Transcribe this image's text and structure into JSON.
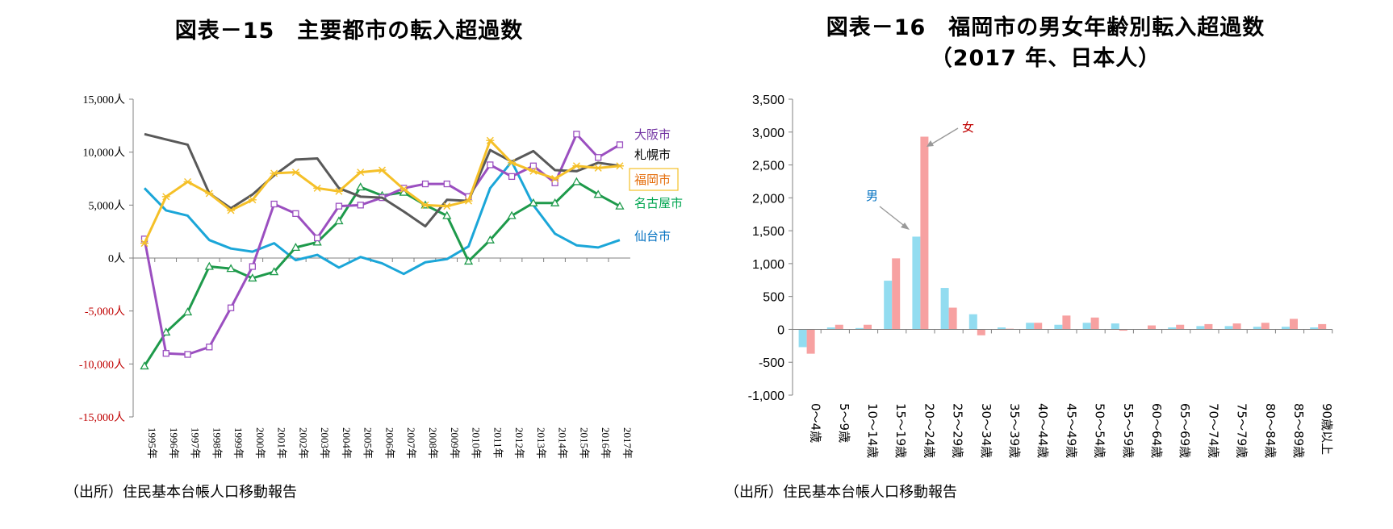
{
  "left_chart": {
    "title": "図表－15　主要都市の転入超過数",
    "source": "（出所）住民基本台帳人口移動報告",
    "chart_data": {
      "type": "line",
      "categories": [
        "1995年",
        "1996年",
        "1997年",
        "1998年",
        "1999年",
        "2000年",
        "2001年",
        "2002年",
        "2003年",
        "2004年",
        "2005年",
        "2006年",
        "2007年",
        "2008年",
        "2009年",
        "2010年",
        "2011年",
        "2012年",
        "2013年",
        "2014年",
        "2015年",
        "2016年",
        "2017年"
      ],
      "ylim": [
        -15000,
        15000
      ],
      "yticks": [
        15000,
        10000,
        5000,
        0,
        -5000,
        -10000,
        -15000
      ],
      "ytick_labels": [
        "15,000人",
        "10,000人",
        "5,000人",
        "0人",
        "-5,000人",
        "-10,000人",
        "-15,000人"
      ],
      "negative_tick_color": "#c00000",
      "series": [
        {
          "name": "大阪市",
          "color": "#9b4fc0",
          "marker": "square",
          "label_color": "#7030a0",
          "values": [
            1800,
            -9000,
            -9100,
            -8400,
            -4700,
            -800,
            5100,
            4200,
            1900,
            4900,
            5000,
            5700,
            6600,
            7000,
            7000,
            5800,
            8800,
            7700,
            8700,
            7100,
            11700,
            9500,
            10700
          ]
        },
        {
          "name": "札幌市",
          "color": "#595959",
          "marker": "none",
          "label_color": "#000000",
          "values": [
            11700,
            11200,
            10700,
            6100,
            4700,
            6000,
            7800,
            9300,
            9400,
            6600,
            5800,
            5700,
            4400,
            3000,
            5500,
            5400,
            10200,
            9100,
            10100,
            8300,
            8200,
            9000,
            8700
          ]
        },
        {
          "name": "福岡市",
          "color": "#f5c028",
          "marker": "star",
          "label_color": "#e46c0a",
          "boxed": true,
          "values": [
            1400,
            5800,
            7200,
            6100,
            4500,
            5500,
            8000,
            8100,
            6600,
            6300,
            8100,
            8300,
            6500,
            5000,
            4900,
            5400,
            11100,
            9000,
            8200,
            7500,
            8700,
            8500,
            8700
          ]
        },
        {
          "name": "名古屋市",
          "color": "#1e9a4b",
          "marker": "triangle",
          "label_color": "#00a550",
          "values": [
            -10200,
            -7000,
            -5100,
            -800,
            -1000,
            -1900,
            -1300,
            1000,
            1500,
            3500,
            6700,
            5900,
            6200,
            5000,
            4000,
            -300,
            1700,
            4000,
            5200,
            5200,
            7200,
            6000,
            4900
          ]
        },
        {
          "name": "仙台市",
          "color": "#1ba6d8",
          "marker": "none",
          "label_color": "#0070c0",
          "values": [
            6600,
            4500,
            4000,
            1700,
            900,
            600,
            1400,
            -200,
            300,
            -900,
            100,
            -500,
            -1500,
            -400,
            -100,
            1100,
            6600,
            9100,
            5000,
            2300,
            1200,
            1000,
            1700
          ]
        }
      ]
    }
  },
  "right_chart": {
    "title_line1": "図表－16　福岡市の男女年齢別転入超過数",
    "title_line2": "（2017 年、日本人）",
    "source": "（出所）住民基本台帳人口移動報告",
    "chart_data": {
      "type": "bar",
      "categories": [
        "0～4歳",
        "5～9歳",
        "10～14歳",
        "15～19歳",
        "20～24歳",
        "25～29歳",
        "30～34歳",
        "35～39歳",
        "40～44歳",
        "45～49歳",
        "50～54歳",
        "55～59歳",
        "60～64歳",
        "65～69歳",
        "70～74歳",
        "75～79歳",
        "80～84歳",
        "85～89歳",
        "90歳以上"
      ],
      "ylim": [
        -1000,
        3500
      ],
      "yticks": [
        3500,
        3000,
        2500,
        2000,
        1500,
        1000,
        500,
        0,
        -500,
        -1000
      ],
      "ytick_labels": [
        "3,500",
        "3,000",
        "2,500",
        "2,000",
        "1,500",
        "1,000",
        "500",
        "0",
        "-500",
        "-1,000"
      ],
      "series": [
        {
          "name": "男",
          "color": "#92dcf0",
          "label_color": "#0070c0",
          "values": [
            -270,
            30,
            20,
            740,
            1410,
            630,
            230,
            30,
            100,
            70,
            100,
            90,
            0,
            30,
            50,
            50,
            40,
            40,
            30
          ]
        },
        {
          "name": "女",
          "color": "#f7a1a1",
          "label_color": "#c00000",
          "values": [
            -370,
            70,
            70,
            1080,
            2930,
            330,
            -90,
            10,
            100,
            210,
            180,
            -20,
            60,
            70,
            80,
            90,
            100,
            160,
            80
          ]
        }
      ]
    }
  }
}
